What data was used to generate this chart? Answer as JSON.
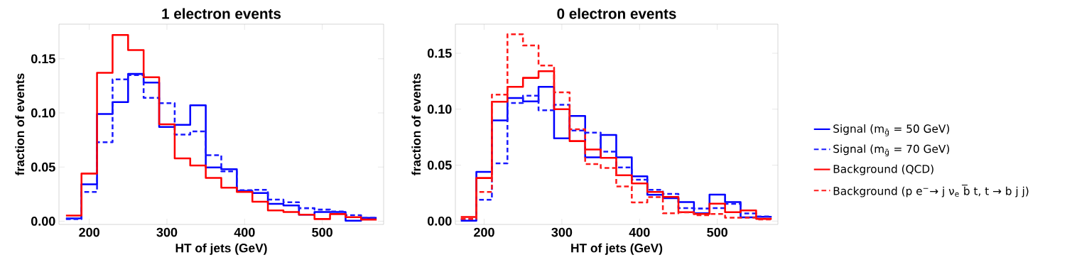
{
  "chart_data": [
    {
      "type": "histogram",
      "title": "1 electron events",
      "xlabel": "HT of jets (GeV)",
      "ylabel": "fraction of events",
      "bins": [
        170,
        190,
        210,
        230,
        250,
        270,
        290,
        310,
        330,
        350,
        370,
        390,
        410,
        430,
        450,
        470,
        490,
        510,
        530,
        550,
        570
      ],
      "xlim": [
        161,
        579
      ],
      "ylim": [
        -0.003,
        0.182
      ],
      "xticks": [
        200,
        300,
        400,
        500
      ],
      "yticks": [
        {
          "value": 0,
          "label": "0.00"
        },
        {
          "value": 0.05,
          "label": "0.05"
        },
        {
          "value": 0.1,
          "label": "0.10"
        },
        {
          "value": 0.15,
          "label": "0.15"
        }
      ],
      "series": [
        {
          "color": "#0000ff",
          "line_style": "solid",
          "values": [
            0.0026,
            0.034,
            0.099,
            0.11,
            0.136,
            0.128,
            0.087,
            0.089,
            0.107,
            0.0496,
            0.048,
            0.028,
            0.026,
            0.016,
            0.0146,
            0.006,
            0.0085,
            0.0085,
            0.0004,
            0.003
          ]
        },
        {
          "color": "#1a1aff",
          "line_style": "dashed",
          "values": [
            0.002,
            0.027,
            0.073,
            0.131,
            0.135,
            0.114,
            0.109,
            0.08,
            0.083,
            0.061,
            0.046,
            0.0286,
            0.029,
            0.02,
            0.0175,
            0.012,
            0.0107,
            0.009,
            0.0055,
            0.003
          ]
        },
        {
          "color": "#ff0000",
          "line_style": "solid",
          "values": [
            0.0052,
            0.044,
            0.137,
            0.172,
            0.158,
            0.133,
            0.0895,
            0.058,
            0.0515,
            0.04,
            0.031,
            0.027,
            0.018,
            0.01,
            0.0085,
            0.006,
            0.002,
            0.0066,
            0.0037,
            0.0015
          ]
        }
      ]
    },
    {
      "type": "histogram",
      "title": "0 electron events",
      "xlabel": "HT of jets (GeV)",
      "ylabel": "fraction of events",
      "legend": "right",
      "bins": [
        170,
        190,
        210,
        230,
        250,
        270,
        290,
        310,
        330,
        350,
        370,
        390,
        410,
        430,
        450,
        470,
        490,
        510,
        530,
        550,
        570
      ],
      "xlim": [
        163,
        578
      ],
      "ylim": [
        -0.003,
        0.176
      ],
      "xticks": [
        200,
        300,
        400,
        500
      ],
      "yticks": [
        {
          "value": 0,
          "label": "0.00"
        },
        {
          "value": 0.05,
          "label": "0.05"
        },
        {
          "value": 0.1,
          "label": "0.10"
        },
        {
          "value": 0.15,
          "label": "0.15"
        }
      ],
      "series": [
        {
          "name": "Signal (m$_{g̃}$ = 50 GeV)",
          "color": "#0000ff",
          "line_style": "solid",
          "values": [
            0.0004,
            0.044,
            0.09,
            0.11,
            0.107,
            0.12,
            0.074,
            0.094,
            0.057,
            0.077,
            0.057,
            0.04,
            0.0235,
            0.0205,
            0.017,
            0.007,
            0.0237,
            0.017,
            0.0034,
            0.0038
          ]
        },
        {
          "name": "Signal (m$_{g̃}$ = 70 GeV)",
          "color": "#1a1aff",
          "line_style": "dashed",
          "values": [
            0.0015,
            0.019,
            0.0516,
            0.1055,
            0.112,
            0.099,
            0.104,
            0.081,
            0.079,
            0.062,
            0.048,
            0.037,
            0.028,
            0.0243,
            0.0116,
            0.0112,
            0.0116,
            0.0154,
            0.0068,
            0.0042
          ]
        },
        {
          "name": "Background (QCD)",
          "color": "#ff0000",
          "line_style": "solid",
          "values": [
            0.0036,
            0.0385,
            0.1066,
            0.12,
            0.128,
            0.134,
            0.1,
            0.0715,
            0.064,
            0.0565,
            0.041,
            0.0336,
            0.026,
            0.0216,
            0.008,
            0.0063,
            0.0156,
            0.008,
            0.0095,
            0.002
          ]
        },
        {
          "name": "Background (p e$^{−}$→ j ν$_{e}$ b̅ t, t → b j j)",
          "color": "#ff1a1a",
          "line_style": "dashed",
          "values": [
            0.002,
            0.026,
            0.113,
            0.167,
            0.157,
            0.139,
            0.115,
            0.082,
            0.051,
            0.0474,
            0.031,
            0.0167,
            0.0214,
            0.007,
            0.0078,
            0.0053,
            0.0063,
            0.003,
            0.003,
            0.0015
          ]
        }
      ]
    }
  ]
}
